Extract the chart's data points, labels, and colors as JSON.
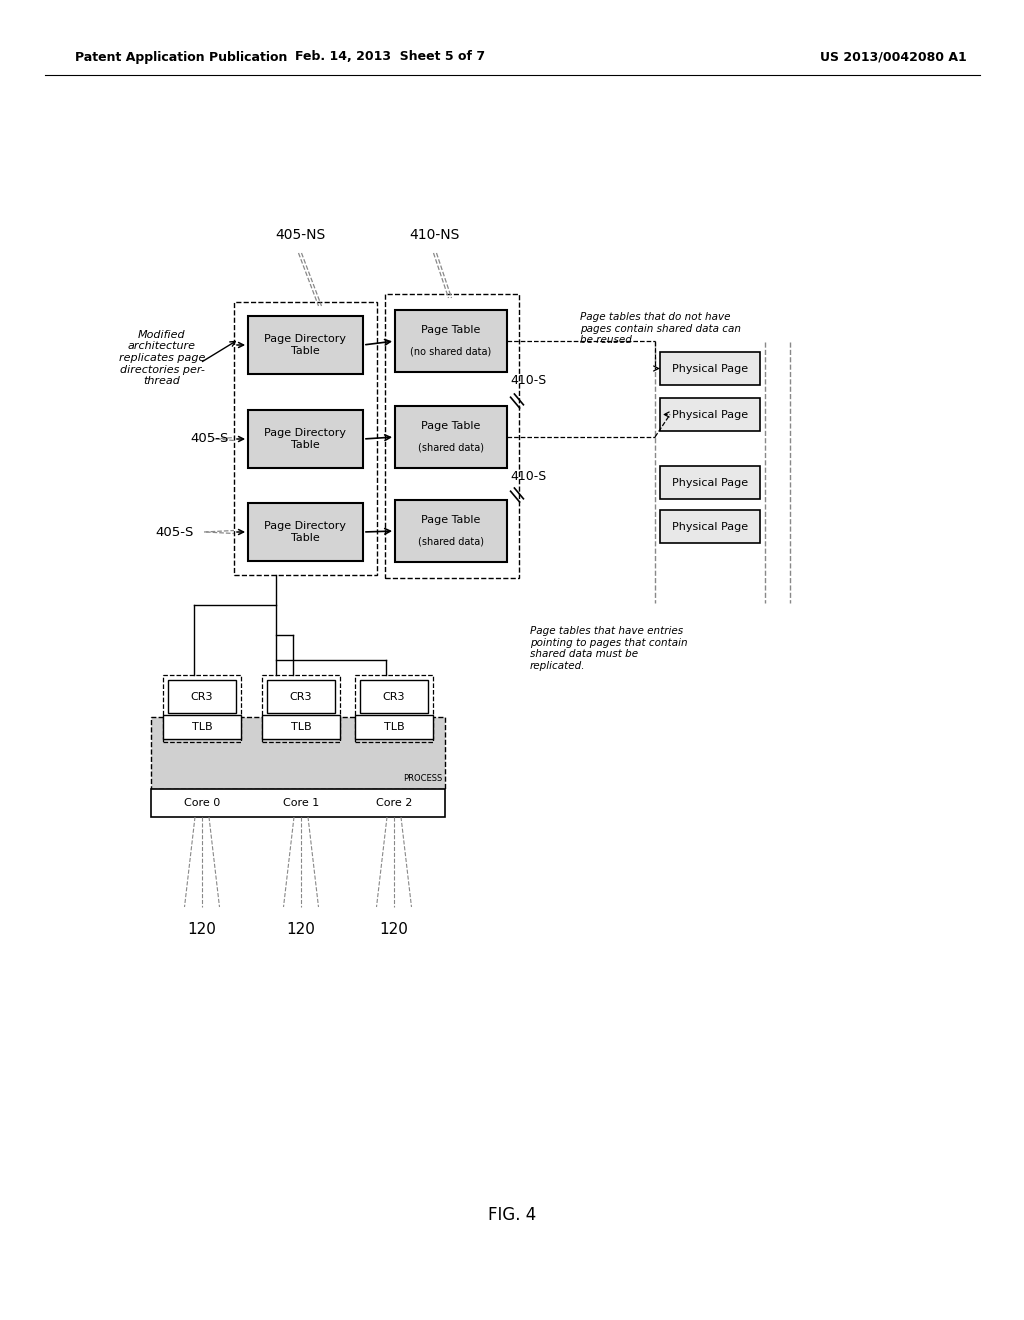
{
  "bg_color": "#ffffff",
  "header_left": "Patent Application Publication",
  "header_center": "Feb. 14, 2013  Sheet 5 of 7",
  "header_right": "US 2013/0042080 A1",
  "figure_label": "FIG. 4",
  "label_405NS": "405-NS",
  "label_410NS": "410-NS",
  "label_405S_1": "405-S",
  "label_405S_2": "405-S",
  "label_410S_1": "410-S",
  "label_410S_2": "410-S",
  "label_120_1": "120",
  "label_120_2": "120",
  "label_120_3": "120",
  "annotation_modified": "Modified\narchitecture\nreplicates page\ndirectories per-\nthread",
  "annotation_reuse": "Page tables that do not have\npages contain shared data can\nbe reused",
  "annotation_replicate": "Page tables that have entries\npointing to pages that contain\nshared data must be\nreplicated.",
  "process_label": "PROCESS",
  "core_labels": [
    "Core 0",
    "Core 1",
    "Core 2"
  ],
  "pdt_box_text": "Page Directory\nTable",
  "pt_ns_text1": "Page Table",
  "pt_ns_text2": "(no shared data)",
  "pt_s_text1": "Page Table",
  "pt_s_text2": "(shared data)",
  "pp_text": "Physical Page",
  "cr3_text": "CR3",
  "tlb_text": "TLB"
}
